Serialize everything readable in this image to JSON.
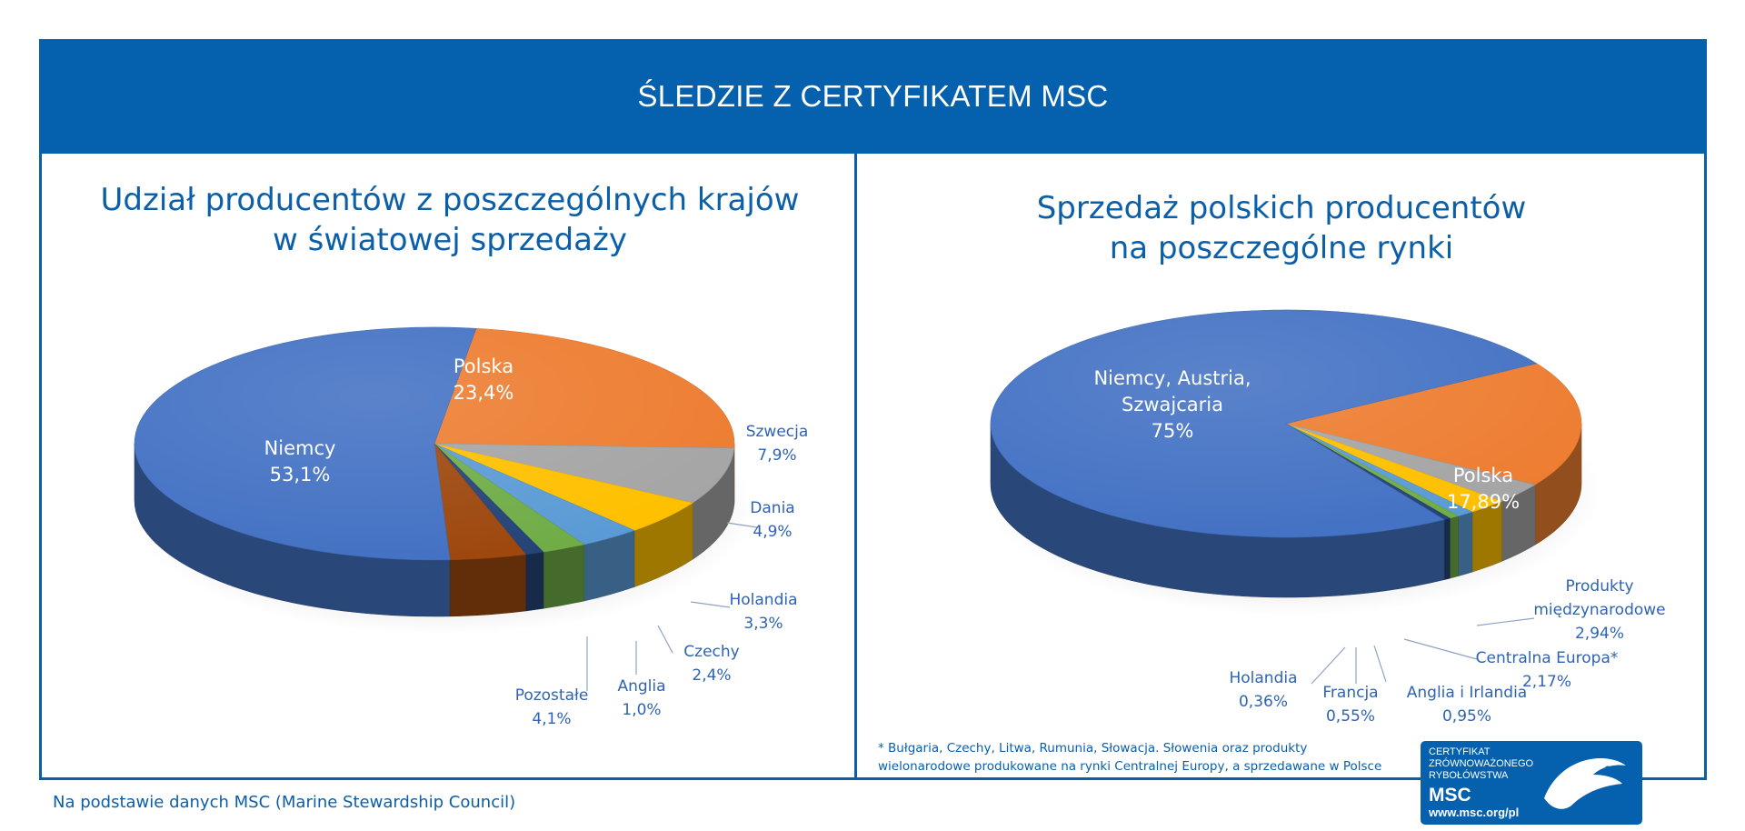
{
  "header": {
    "title": "ŚLEDZIE Z CERTYFIKATEM MSC"
  },
  "footnote": "* Bułgaria, Czechy, Litwa, Rumunia, Słowacja. Słowenia oraz produkty\nwielonarodowe produkowane na rynki Centralnej Europy, a sprzedawane w Polsce",
  "source": "Na podstawie danych MSC (Marine Stewardship Council)",
  "logo": {
    "lines": "CERTYFIKAT\nZRÓWNOWAŻONEGO\nRYBOŁÓWSTWA",
    "brand": "MSC",
    "url": "www.msc.org/pl",
    "tm": "™"
  },
  "chart_data": [
    {
      "type": "pie",
      "title": "Udział producentów z poszczególnych krajów\nw światowej sprzedaży",
      "unit": "%",
      "slices": [
        {
          "label": "Polska",
          "value": 23.4,
          "display": "23,4%",
          "color": "#ed7d31"
        },
        {
          "label": "Szwecja",
          "value": 7.9,
          "display": "7,9%",
          "color": "#a5a5a5"
        },
        {
          "label": "Dania",
          "value": 4.9,
          "display": "4,9%",
          "color": "#ffc000"
        },
        {
          "label": "Holandia",
          "value": 3.3,
          "display": "3,3%",
          "color": "#5b9bd5"
        },
        {
          "label": "Czechy",
          "value": 2.4,
          "display": "2,4%",
          "color": "#70ad47"
        },
        {
          "label": "Anglia",
          "value": 1.0,
          "display": "1,0%",
          "color": "#264478"
        },
        {
          "label": "Pozostałe",
          "value": 4.1,
          "display": "4,1%",
          "color": "#9e480e"
        },
        {
          "label": "Niemcy",
          "value": 53.1,
          "display": "53,1%",
          "color": "#4472c4"
        }
      ]
    },
    {
      "type": "pie",
      "title": "Sprzedaż polskich producentów\nna poszczególne rynki",
      "unit": "%",
      "slices": [
        {
          "label": "Polska",
          "value": 17.89,
          "display": "17,89%",
          "color": "#ed7d31"
        },
        {
          "label": "Produkty\nmiędzynarodowe",
          "value": 2.94,
          "display": "2,94%",
          "color": "#a5a5a5"
        },
        {
          "label": "Centralna Europa*",
          "value": 2.17,
          "display": "2,17%",
          "color": "#ffc000"
        },
        {
          "label": "Anglia i Irlandia",
          "value": 0.95,
          "display": "0,95%",
          "color": "#5b9bd5"
        },
        {
          "label": "Francja",
          "value": 0.55,
          "display": "0,55%",
          "color": "#70ad47"
        },
        {
          "label": "Holandia",
          "value": 0.36,
          "display": "0,36%",
          "color": "#264478"
        },
        {
          "label": "Niemcy, Austria,\nSzwajcaria",
          "value": 75,
          "display": "75%",
          "color": "#4472c4"
        }
      ]
    }
  ]
}
